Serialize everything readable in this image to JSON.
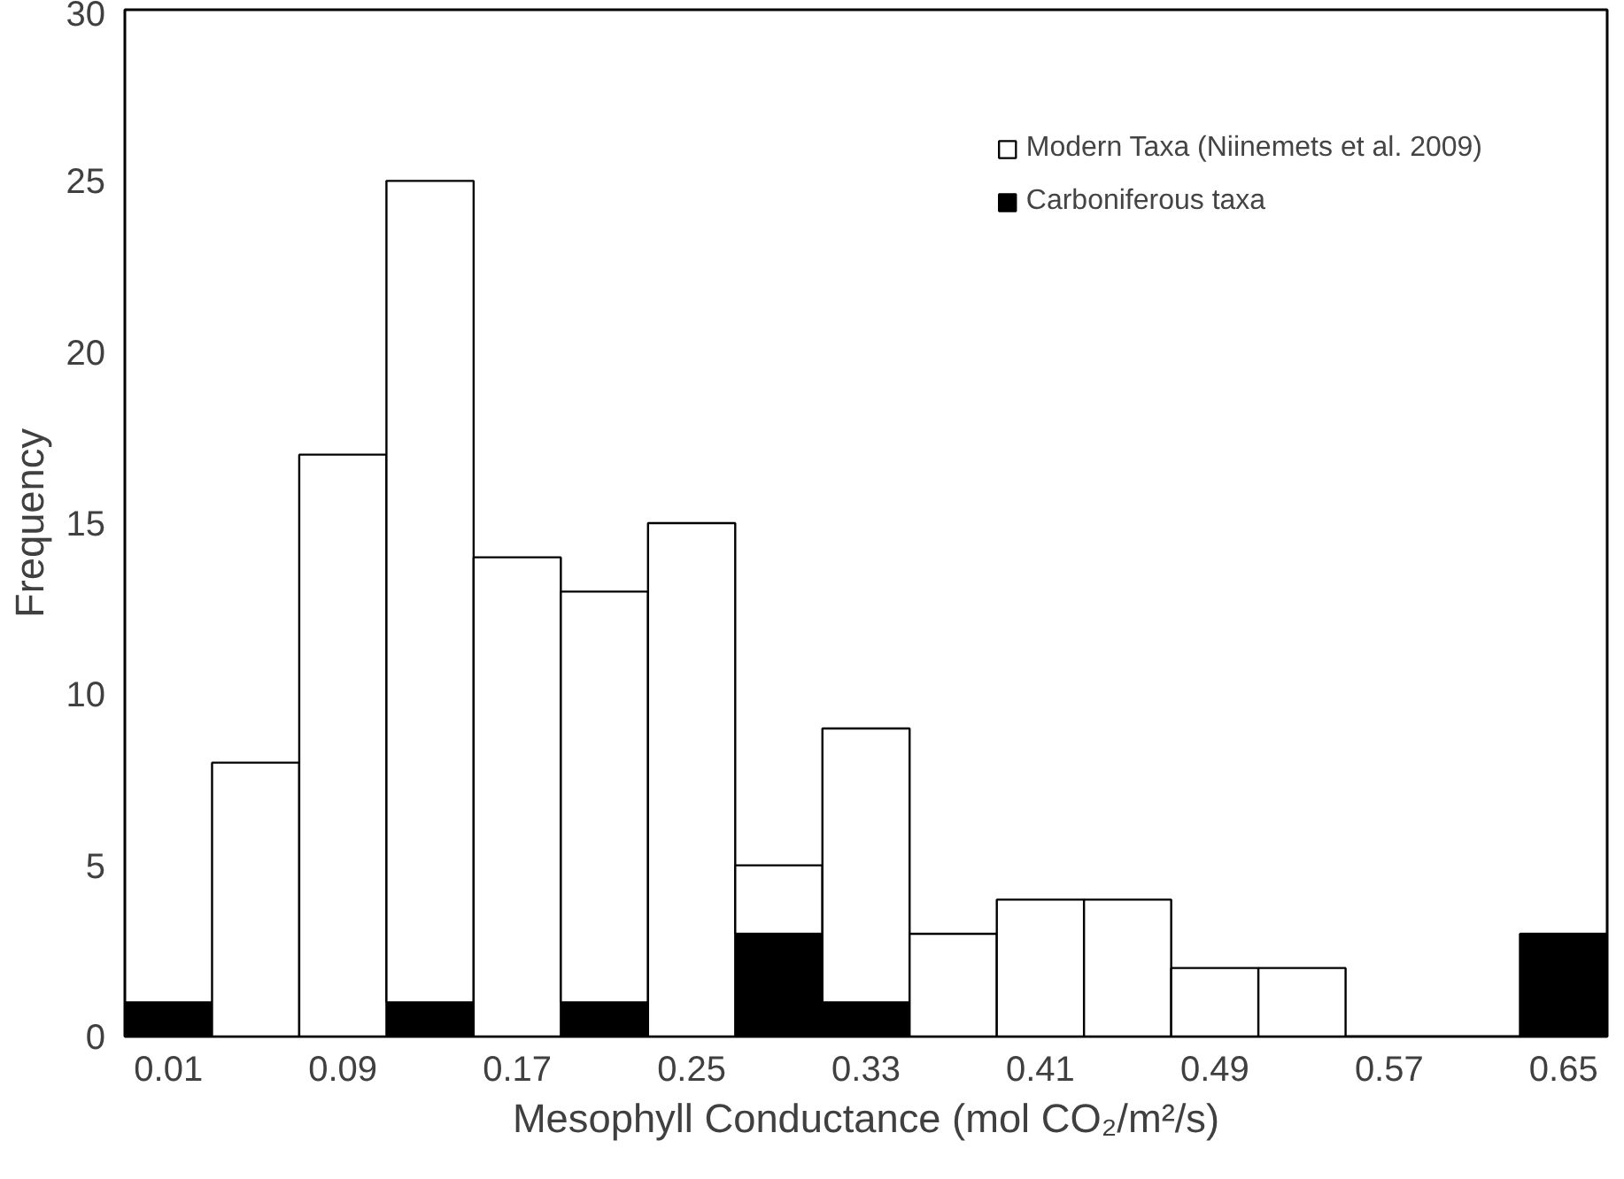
{
  "chart_data": {
    "type": "bar",
    "stacked": true,
    "xlabel": "Mesophyll Conductance (mol CO₂/m²/s)",
    "ylabel": "Frequency",
    "categories": [
      "0.01",
      null,
      "0.09",
      null,
      "0.17",
      null,
      "0.25",
      null,
      "0.33",
      null,
      "0.41",
      null,
      "0.49",
      null,
      "0.57",
      null,
      "0.65"
    ],
    "series": [
      {
        "name": "Carboniferous taxa",
        "color": "#000000",
        "values": [
          1,
          0,
          0,
          1,
          0,
          1,
          0,
          3,
          1,
          0,
          0,
          0,
          0,
          0,
          0,
          0,
          3
        ]
      },
      {
        "name": "Modern Taxa (Niinemets et al. 2009)",
        "color": "#ffffff",
        "values": [
          0,
          8,
          17,
          24,
          14,
          12,
          15,
          2,
          8,
          3,
          4,
          4,
          2,
          2,
          0,
          0,
          0
        ]
      }
    ],
    "ylim": [
      0,
      30
    ],
    "yticks": [
      0,
      5,
      10,
      15,
      20,
      25,
      30
    ],
    "grid": false,
    "legend": "top right"
  }
}
